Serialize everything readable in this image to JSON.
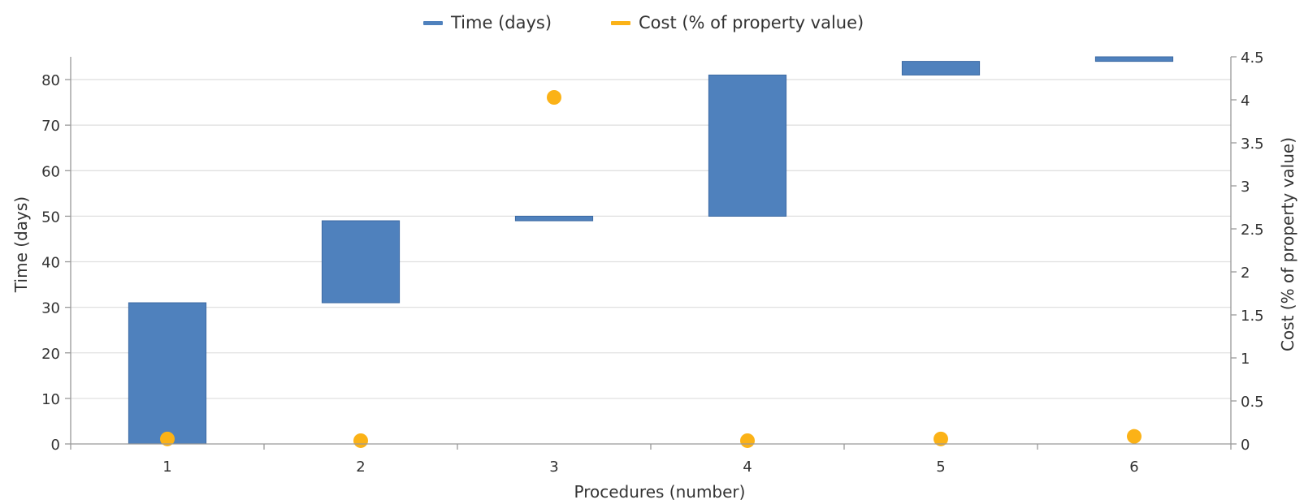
{
  "chart_data": {
    "type": "bar",
    "subtype": "waterfall-with-scatter",
    "xlabel": "Procedures (number)",
    "categories": [
      "1",
      "2",
      "3",
      "4",
      "5",
      "6"
    ],
    "legend_position": "top-center",
    "grid": true,
    "y_left": {
      "label": "Time (days)",
      "ylim": [
        0,
        85
      ],
      "ticks": [
        0,
        10,
        20,
        30,
        40,
        50,
        60,
        70,
        80
      ]
    },
    "y_right": {
      "label": "Cost (% of property value)",
      "ylim": [
        0,
        4.5
      ],
      "ticks": [
        "0",
        "0.5",
        "1",
        "1.5",
        "2",
        "2.5",
        "3",
        "3.5",
        "4",
        "4.5"
      ]
    },
    "series": [
      {
        "name": "Time (days)",
        "kind": "floating-bar",
        "axis": "left",
        "color": "#4f81bd",
        "start": [
          0,
          31,
          49,
          50,
          81,
          84
        ],
        "end": [
          31,
          49,
          50,
          81,
          84,
          85
        ]
      },
      {
        "name": "Cost (% of property value)",
        "kind": "scatter",
        "axis": "right",
        "color": "#fbb217",
        "values": [
          0.03,
          0.01,
          4.0,
          0.01,
          0.03,
          0.06
        ]
      }
    ]
  }
}
